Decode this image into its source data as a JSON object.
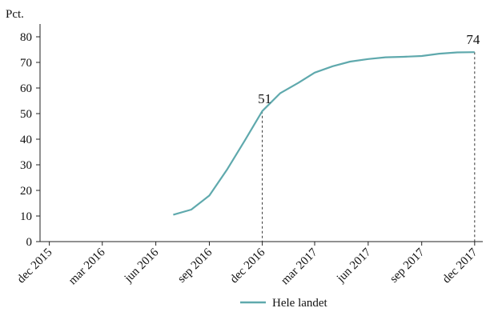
{
  "chart_data": {
    "type": "line",
    "title": "",
    "ylabel": "Pct.",
    "xlabel": "",
    "ylim": [
      0,
      85
    ],
    "yticks": [
      0,
      10,
      20,
      30,
      40,
      50,
      60,
      70,
      80
    ],
    "xlim": [
      "2015-11-15",
      "2017-12-15"
    ],
    "xticks": [
      {
        "date": "2015-12-01",
        "label": "dec 2015"
      },
      {
        "date": "2016-03-01",
        "label": "mar 2016"
      },
      {
        "date": "2016-06-01",
        "label": "jun 2016"
      },
      {
        "date": "2016-09-01",
        "label": "sep 2016"
      },
      {
        "date": "2016-12-01",
        "label": "dec 2016"
      },
      {
        "date": "2017-03-01",
        "label": "mar 2017"
      },
      {
        "date": "2017-06-01",
        "label": "jun 2017"
      },
      {
        "date": "2017-09-01",
        "label": "sep 2017"
      },
      {
        "date": "2017-12-01",
        "label": "dec 2017"
      }
    ],
    "grid": false,
    "legend": "bottom",
    "series": [
      {
        "name": "Hele landet",
        "color": "#5fa9ad",
        "x": [
          "2016-07-01",
          "2016-08-01",
          "2016-09-01",
          "2016-10-01",
          "2016-11-01",
          "2016-12-01",
          "2017-01-01",
          "2017-02-01",
          "2017-03-01",
          "2017-04-01",
          "2017-05-01",
          "2017-06-01",
          "2017-07-01",
          "2017-08-01",
          "2017-09-01",
          "2017-10-01",
          "2017-11-01",
          "2017-12-01"
        ],
        "y": [
          10.5,
          12.5,
          18,
          28,
          39.5,
          51,
          58,
          62,
          66,
          68.5,
          70.3,
          71.3,
          72,
          72.2,
          72.5,
          73.4,
          73.9,
          74
        ]
      }
    ],
    "annotations": [
      {
        "date": "2016-12-01",
        "value": 51,
        "label": "51",
        "dashed_line": true
      },
      {
        "date": "2017-12-01",
        "value": 74,
        "label": "74",
        "dashed_line": true
      }
    ]
  }
}
